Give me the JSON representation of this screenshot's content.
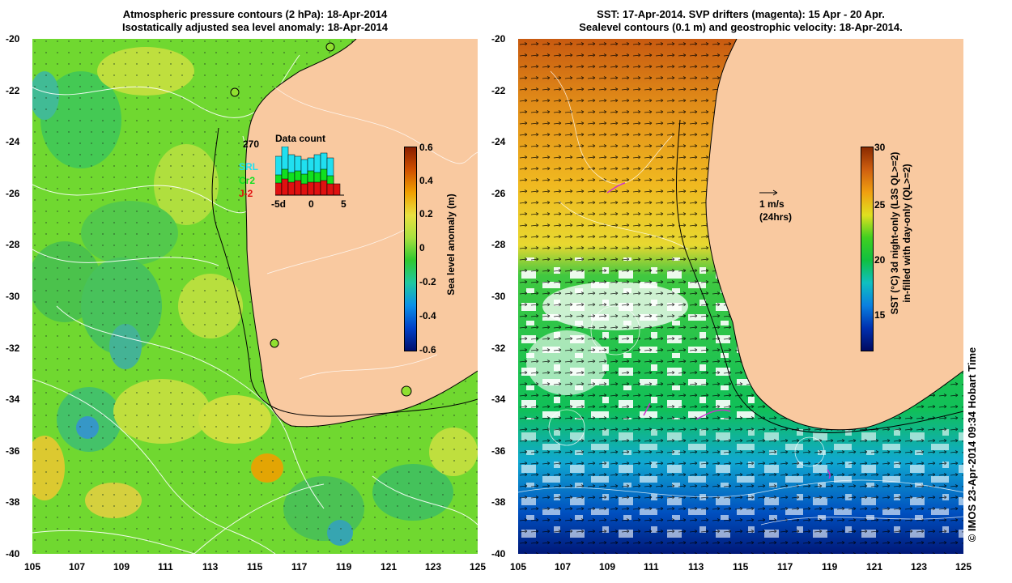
{
  "left_panel": {
    "title_line1": "Atmospheric pressure contours (2 hPa): 18-Apr-2014",
    "title_line2": "Isostatically adjusted sea level anomaly: 18-Apr-2014",
    "colorbar": {
      "label": "Sea level anomaly (m)",
      "ticks": [
        "0.6",
        "0.4",
        "0.2",
        "0",
        "-0.2",
        "-0.4",
        "-0.6"
      ],
      "colors": [
        "#00106e",
        "#0040c8",
        "#0a90e8",
        "#20c8a0",
        "#30c830",
        "#a8e040",
        "#e8e040",
        "#f0a000",
        "#d05000",
        "#8a1e00"
      ]
    },
    "inset": {
      "title": "Data count",
      "max_label": "270",
      "legend": [
        {
          "label": "SRL",
          "color": "#20e0f0"
        },
        {
          "label": "Cr2",
          "color": "#10e020"
        },
        {
          "label": "J-2",
          "color": "#e01010"
        }
      ],
      "xticks": [
        "-5d",
        "0",
        "5"
      ]
    }
  },
  "right_panel": {
    "title_line1": "SST: 17-Apr-2014. SVP drifters (magenta): 15 Apr - 20 Apr.",
    "title_line2": "Sealevel contours (0.1 m) and geostrophic velocity: 18-Apr-2014.",
    "scale_arrow_label1": "1 m/s",
    "scale_arrow_label2": "(24hrs)",
    "colorbar": {
      "label_line1": "SST (°C)  3d night-only (L3S QL>=2)",
      "label_line2": "in-filled with day-only (QL>=2)",
      "ticks": [
        "30",
        "25",
        "20",
        "15"
      ],
      "colors": [
        "#000a60",
        "#0030b0",
        "#0a80e0",
        "#10c0c0",
        "#10c040",
        "#40d020",
        "#e0e020",
        "#f0a010",
        "#d06010",
        "#8a2a00"
      ]
    }
  },
  "x_ticks": [
    "105",
    "107",
    "109",
    "111",
    "113",
    "115",
    "117",
    "119",
    "121",
    "123",
    "125"
  ],
  "y_ticks": [
    "-20",
    "-22",
    "-24",
    "-26",
    "-28",
    "-30",
    "-32",
    "-34",
    "-36",
    "-38",
    "-40"
  ],
  "credit": "© IMOS 23-Apr-2014 09:34 Hobart Time",
  "colors": {
    "land": "#f9c9a0",
    "coast": "#000000",
    "contour": "#ffffff",
    "drifter": "#cc33cc"
  }
}
